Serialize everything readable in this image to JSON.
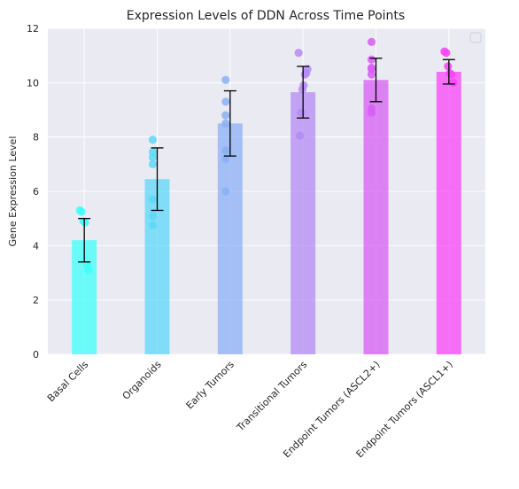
{
  "chart_data": {
    "type": "bar",
    "title": "Expression Levels of DDN Across Time Points",
    "xlabel": "",
    "ylabel": "Gene Expression Level",
    "ylim": [
      0,
      12
    ],
    "yticks": [
      0,
      2,
      4,
      6,
      8,
      10,
      12
    ],
    "grid": true,
    "legend_position": "top-right",
    "categories": [
      "Basal Cells",
      "Organoids",
      "Early Tumors",
      "Transitional Tumors",
      "Endpoint Tumors (ASCL2+)",
      "Endpoint Tumors (ASCL1+)"
    ],
    "values": [
      4.2,
      6.45,
      8.5,
      9.65,
      10.1,
      10.4
    ],
    "errors": [
      0.8,
      1.15,
      1.2,
      0.95,
      0.8,
      0.45
    ],
    "colors": [
      "#3ffff9",
      "#5dd8f8",
      "#8bb0f5",
      "#b48bf3",
      "#d75ef3",
      "#f844f7"
    ],
    "points": [
      [
        5.3,
        5.25,
        4.9,
        4.85,
        3.3,
        3.1
      ],
      [
        7.9,
        7.45,
        7.25,
        7.0,
        5.7,
        5.1,
        4.75
      ],
      [
        10.1,
        9.3,
        8.8,
        8.5,
        7.5,
        7.2,
        6.0
      ],
      [
        11.1,
        10.5,
        10.35,
        10.3,
        9.9,
        9.75,
        8.9,
        8.05
      ],
      [
        11.5,
        10.85,
        10.55,
        10.5,
        10.3,
        9.05,
        8.9
      ],
      [
        11.15,
        11.1,
        10.6,
        10.35,
        10.3,
        10.0
      ]
    ]
  }
}
